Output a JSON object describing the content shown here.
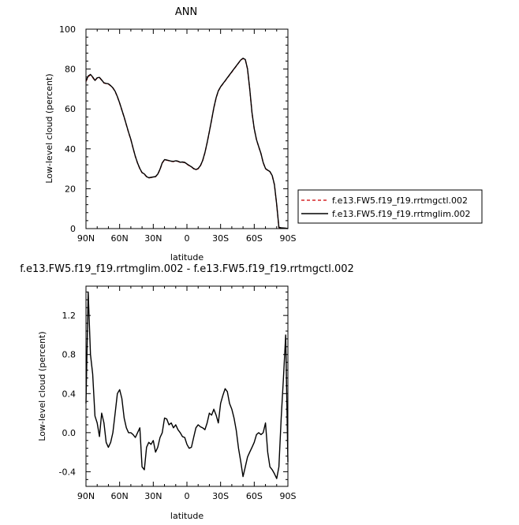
{
  "chart_data": [
    {
      "type": "line",
      "title": "ANN",
      "xlabel": "latitude",
      "ylabel": "Low-level cloud (percent)",
      "xlim": [
        90,
        -90
      ],
      "ylim": [
        0,
        100
      ],
      "x_ticks": [
        90,
        60,
        30,
        0,
        -30,
        -60,
        -90
      ],
      "x_tick_labels": [
        "90N",
        "60N",
        "30N",
        "0",
        "30S",
        "60S",
        "90S"
      ],
      "y_ticks": [
        0,
        20,
        40,
        60,
        80,
        100
      ],
      "y_tick_labels": [
        "0",
        "20",
        "40",
        "60",
        "80",
        "100"
      ],
      "legend_position": "right",
      "series": [
        {
          "name": "f.e13.FW5.f19_f19.rrtmgctl.002",
          "color": "#d62728",
          "style": "dashed",
          "x": [
            90,
            88,
            86,
            84,
            82,
            80,
            78,
            76,
            74,
            72,
            70,
            68,
            66,
            64,
            62,
            60,
            58,
            56,
            54,
            52,
            50,
            48,
            46,
            44,
            42,
            40,
            38,
            36,
            34,
            32,
            30,
            28,
            26,
            24,
            22,
            20,
            18,
            16,
            14,
            12,
            10,
            8,
            6,
            4,
            2,
            0,
            -2,
            -4,
            -6,
            -8,
            -10,
            -12,
            -14,
            -16,
            -18,
            -20,
            -22,
            -24,
            -26,
            -28,
            -30,
            -32,
            -34,
            -36,
            -38,
            -40,
            -42,
            -44,
            -46,
            -48,
            -50,
            -52,
            -54,
            -56,
            -58,
            -60,
            -62,
            -64,
            -66,
            -68,
            -70,
            -72,
            -74,
            -76,
            -78,
            -80,
            -82,
            -84,
            -86,
            -88,
            -90
          ],
          "y": [
            73.7,
            76.1,
            77.1,
            75.8,
            74.1,
            75.5,
            75.7,
            74.4,
            73.0,
            72.7,
            72.5,
            71.6,
            70.5,
            68.7,
            66.1,
            62.9,
            59.4,
            55.8,
            52.0,
            48.2,
            44.6,
            40.3,
            36.1,
            32.8,
            30.0,
            28.0,
            27.3,
            26.0,
            25.4,
            25.6,
            25.8,
            26.0,
            27.2,
            29.7,
            32.9,
            34.5,
            34.3,
            34.0,
            33.7,
            33.6,
            33.9,
            33.7,
            33.2,
            33.3,
            33.1,
            32.3,
            31.6,
            30.9,
            30.0,
            29.5,
            30.0,
            31.5,
            34.0,
            38.0,
            43.0,
            48.5,
            54.5,
            60.5,
            65.5,
            69.0,
            71.0,
            72.5,
            74.0,
            75.5,
            77.0,
            78.5,
            80.0,
            81.5,
            83.0,
            84.5,
            85.3,
            84.7,
            80.0,
            70.0,
            58.0,
            50.0,
            44.5,
            41.0,
            37.5,
            33.0,
            30.0,
            29.2,
            28.5,
            26.5,
            22.0,
            12.0,
            0.5,
            0.3,
            0.2,
            0.1,
            0.0
          ]
        },
        {
          "name": "f.e13.FW5.f19_f19.rrtmglim.002",
          "color": "#000000",
          "style": "solid",
          "x": [
            90,
            88,
            86,
            84,
            82,
            80,
            78,
            76,
            74,
            72,
            70,
            68,
            66,
            64,
            62,
            60,
            58,
            56,
            54,
            52,
            50,
            48,
            46,
            44,
            42,
            40,
            38,
            36,
            34,
            32,
            30,
            28,
            26,
            24,
            22,
            20,
            18,
            16,
            14,
            12,
            10,
            8,
            6,
            4,
            2,
            0,
            -2,
            -4,
            -6,
            -8,
            -10,
            -12,
            -14,
            -16,
            -18,
            -20,
            -22,
            -24,
            -26,
            -28,
            -30,
            -32,
            -34,
            -36,
            -38,
            -40,
            -42,
            -44,
            -46,
            -48,
            -50,
            -52,
            -54,
            -56,
            -58,
            -60,
            -62,
            -64,
            -66,
            -68,
            -70,
            -72,
            -74,
            -76,
            -78,
            -80,
            -82,
            -84,
            -86,
            -88,
            -90
          ],
          "y": [
            74.0,
            76.5,
            77.3,
            76.0,
            74.3,
            75.6,
            75.8,
            74.5,
            73.1,
            72.8,
            72.6,
            71.7,
            70.6,
            68.8,
            66.2,
            63.0,
            59.5,
            55.9,
            52.1,
            48.3,
            44.7,
            40.4,
            36.2,
            32.9,
            30.1,
            28.1,
            27.4,
            26.1,
            25.5,
            25.7,
            25.9,
            26.1,
            27.3,
            29.8,
            33.0,
            34.6,
            34.4,
            34.1,
            33.8,
            33.7,
            34.0,
            33.8,
            33.3,
            33.4,
            33.2,
            32.4,
            31.7,
            31.0,
            30.1,
            29.6,
            30.1,
            31.6,
            34.1,
            38.1,
            43.1,
            48.6,
            54.6,
            60.6,
            65.6,
            69.1,
            71.1,
            72.6,
            74.1,
            75.6,
            77.1,
            78.6,
            80.1,
            81.6,
            83.1,
            84.6,
            85.4,
            84.8,
            80.1,
            70.1,
            58.1,
            50.1,
            44.6,
            41.1,
            37.6,
            33.1,
            30.1,
            29.3,
            28.6,
            26.6,
            22.1,
            12.1,
            0.6,
            0.4,
            0.3,
            0.2,
            0.0
          ]
        }
      ]
    },
    {
      "type": "line",
      "title": "f.e13.FW5.f19_f19.rrtmglim.002 - f.e13.FW5.f19_f19.rrtmgctl.002",
      "xlabel": "latitude",
      "ylabel": "Low-level cloud (percent)",
      "xlim": [
        90,
        -90
      ],
      "ylim": [
        -0.55,
        1.5
      ],
      "x_ticks": [
        90,
        60,
        30,
        0,
        -30,
        -60,
        -90
      ],
      "x_tick_labels": [
        "90N",
        "60N",
        "30N",
        "0",
        "30S",
        "60S",
        "90S"
      ],
      "y_ticks": [
        -0.4,
        0.0,
        0.4,
        0.8,
        1.2
      ],
      "y_tick_labels": [
        "-0.4",
        "0.0",
        "0.4",
        "0.8",
        "1.2"
      ],
      "series": [
        {
          "color": "#000000",
          "style": "solid",
          "x": [
            90,
            88,
            86,
            84,
            82,
            80,
            78,
            76,
            74,
            72,
            70,
            68,
            66,
            64,
            62,
            60,
            58,
            56,
            54,
            52,
            50,
            48,
            46,
            44,
            42,
            40,
            38,
            36,
            34,
            32,
            30,
            28,
            26,
            24,
            22,
            20,
            18,
            16,
            14,
            12,
            10,
            8,
            6,
            4,
            2,
            0,
            -2,
            -4,
            -6,
            -8,
            -10,
            -12,
            -14,
            -16,
            -18,
            -20,
            -22,
            -24,
            -26,
            -28,
            -30,
            -32,
            -34,
            -36,
            -38,
            -40,
            -42,
            -44,
            -46,
            -48,
            -50,
            -52,
            -54,
            -56,
            -58,
            -60,
            -62,
            -64,
            -66,
            -68,
            -70,
            -72,
            -74,
            -76,
            -78,
            -80,
            -82,
            -84,
            -86,
            -88,
            -90
          ],
          "y": [
            0.3,
            1.44,
            0.8,
            0.6,
            0.17,
            0.1,
            -0.04,
            0.2,
            0.1,
            -0.1,
            -0.15,
            -0.1,
            0.0,
            0.2,
            0.4,
            0.44,
            0.35,
            0.15,
            0.05,
            0.0,
            0.0,
            -0.02,
            -0.05,
            0.0,
            0.05,
            -0.35,
            -0.38,
            -0.15,
            -0.1,
            -0.12,
            -0.08,
            -0.2,
            -0.15,
            -0.05,
            0.0,
            0.15,
            0.14,
            0.08,
            0.1,
            0.05,
            0.08,
            0.03,
            0.0,
            -0.04,
            -0.05,
            -0.12,
            -0.16,
            -0.15,
            -0.05,
            0.05,
            0.08,
            0.06,
            0.05,
            0.03,
            0.1,
            0.2,
            0.18,
            0.24,
            0.18,
            0.1,
            0.3,
            0.38,
            0.45,
            0.42,
            0.3,
            0.24,
            0.15,
            0.02,
            -0.16,
            -0.3,
            -0.45,
            -0.35,
            -0.25,
            -0.2,
            -0.15,
            -0.1,
            -0.02,
            0.0,
            -0.02,
            0.0,
            0.1,
            -0.2,
            -0.35,
            -0.38,
            -0.42,
            -0.47,
            -0.35,
            0.15,
            0.55,
            1.0,
            -0.3
          ]
        }
      ]
    }
  ]
}
